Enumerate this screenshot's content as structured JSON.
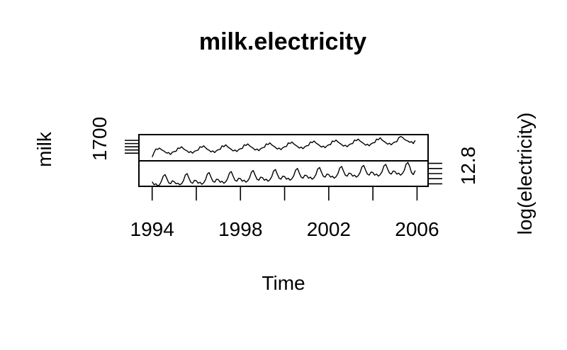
{
  "chart_data": {
    "type": "line",
    "title": "milk.electricity",
    "xlabel": "Time",
    "x_start": 1994,
    "x_end": 2005.917,
    "frequency": "monthly",
    "xlim": [
      1993.4,
      2006.5
    ],
    "x_ticks": [
      1994,
      1996,
      1998,
      2000,
      2002,
      2004,
      2006
    ],
    "x_tick_labels": [
      "1994",
      "1998",
      "2002",
      "2006"
    ],
    "panels": [
      {
        "ylabel": "milk",
        "y_axis_side": "left",
        "y_tick_label": "1700",
        "ylim": [
          1380,
          1790
        ],
        "y_ticks": [
          1500,
          1550,
          1600,
          1650,
          1700
        ]
      },
      {
        "ylabel": "log(electricity)",
        "y_axis_side": "right",
        "y_tick_label": "12.8",
        "ylim": [
          12.35,
          12.85
        ],
        "y_ticks": [
          12.4,
          12.5,
          12.6,
          12.7,
          12.8
        ]
      }
    ],
    "series": [
      {
        "name": "milk",
        "values": [
          1440,
          1510,
          1565,
          1560,
          1580,
          1555,
          1540,
          1520,
          1500,
          1510,
          1480,
          1515,
          1525,
          1530,
          1580,
          1575,
          1600,
          1570,
          1550,
          1535,
          1510,
          1525,
          1500,
          1530,
          1540,
          1550,
          1600,
          1590,
          1615,
          1585,
          1560,
          1545,
          1520,
          1535,
          1510,
          1540,
          1555,
          1560,
          1615,
          1600,
          1630,
          1600,
          1580,
          1560,
          1535,
          1550,
          1525,
          1555,
          1570,
          1575,
          1630,
          1620,
          1645,
          1615,
          1595,
          1575,
          1550,
          1565,
          1540,
          1570,
          1585,
          1590,
          1645,
          1635,
          1660,
          1630,
          1610,
          1590,
          1565,
          1580,
          1555,
          1585,
          1600,
          1605,
          1660,
          1650,
          1675,
          1645,
          1625,
          1605,
          1580,
          1595,
          1570,
          1600,
          1615,
          1620,
          1675,
          1665,
          1690,
          1660,
          1640,
          1620,
          1595,
          1610,
          1585,
          1615,
          1630,
          1635,
          1690,
          1680,
          1705,
          1675,
          1655,
          1635,
          1610,
          1625,
          1600,
          1630,
          1645,
          1650,
          1705,
          1695,
          1720,
          1690,
          1670,
          1650,
          1625,
          1640,
          1615,
          1645,
          1660,
          1665,
          1720,
          1710,
          1740,
          1705,
          1685,
          1665,
          1640,
          1655,
          1630,
          1660,
          1675,
          1680,
          1740,
          1760,
          1750,
          1720,
          1700,
          1690,
          1670,
          1680,
          1650,
          1700
        ]
      },
      {
        "name": "log(electricity)",
        "values": [
          12.44,
          12.38,
          12.4,
          12.36,
          12.38,
          12.45,
          12.55,
          12.58,
          12.5,
          12.42,
          12.4,
          12.46,
          12.44,
          12.4,
          12.41,
          12.38,
          12.4,
          12.46,
          12.57,
          12.6,
          12.51,
          12.43,
          12.41,
          12.47,
          12.46,
          12.41,
          12.43,
          12.39,
          12.42,
          12.48,
          12.59,
          12.62,
          12.53,
          12.45,
          12.43,
          12.49,
          12.48,
          12.43,
          12.45,
          12.41,
          12.44,
          12.5,
          12.61,
          12.64,
          12.55,
          12.47,
          12.45,
          12.51,
          12.5,
          12.45,
          12.47,
          12.43,
          12.46,
          12.52,
          12.63,
          12.66,
          12.57,
          12.49,
          12.47,
          12.53,
          12.52,
          12.47,
          12.49,
          12.45,
          12.48,
          12.54,
          12.65,
          12.68,
          12.59,
          12.51,
          12.49,
          12.55,
          12.54,
          12.49,
          12.51,
          12.47,
          12.5,
          12.56,
          12.67,
          12.7,
          12.61,
          12.53,
          12.51,
          12.57,
          12.56,
          12.51,
          12.53,
          12.49,
          12.52,
          12.58,
          12.69,
          12.72,
          12.63,
          12.55,
          12.53,
          12.59,
          12.58,
          12.53,
          12.55,
          12.51,
          12.54,
          12.6,
          12.71,
          12.74,
          12.65,
          12.57,
          12.55,
          12.61,
          12.6,
          12.55,
          12.57,
          12.53,
          12.56,
          12.62,
          12.73,
          12.76,
          12.67,
          12.59,
          12.57,
          12.63,
          12.62,
          12.57,
          12.59,
          12.55,
          12.58,
          12.64,
          12.75,
          12.78,
          12.69,
          12.61,
          12.59,
          12.65,
          12.64,
          12.59,
          12.61,
          12.57,
          12.6,
          12.66,
          12.78,
          12.82,
          12.74,
          12.62,
          12.58,
          12.66
        ]
      }
    ]
  }
}
